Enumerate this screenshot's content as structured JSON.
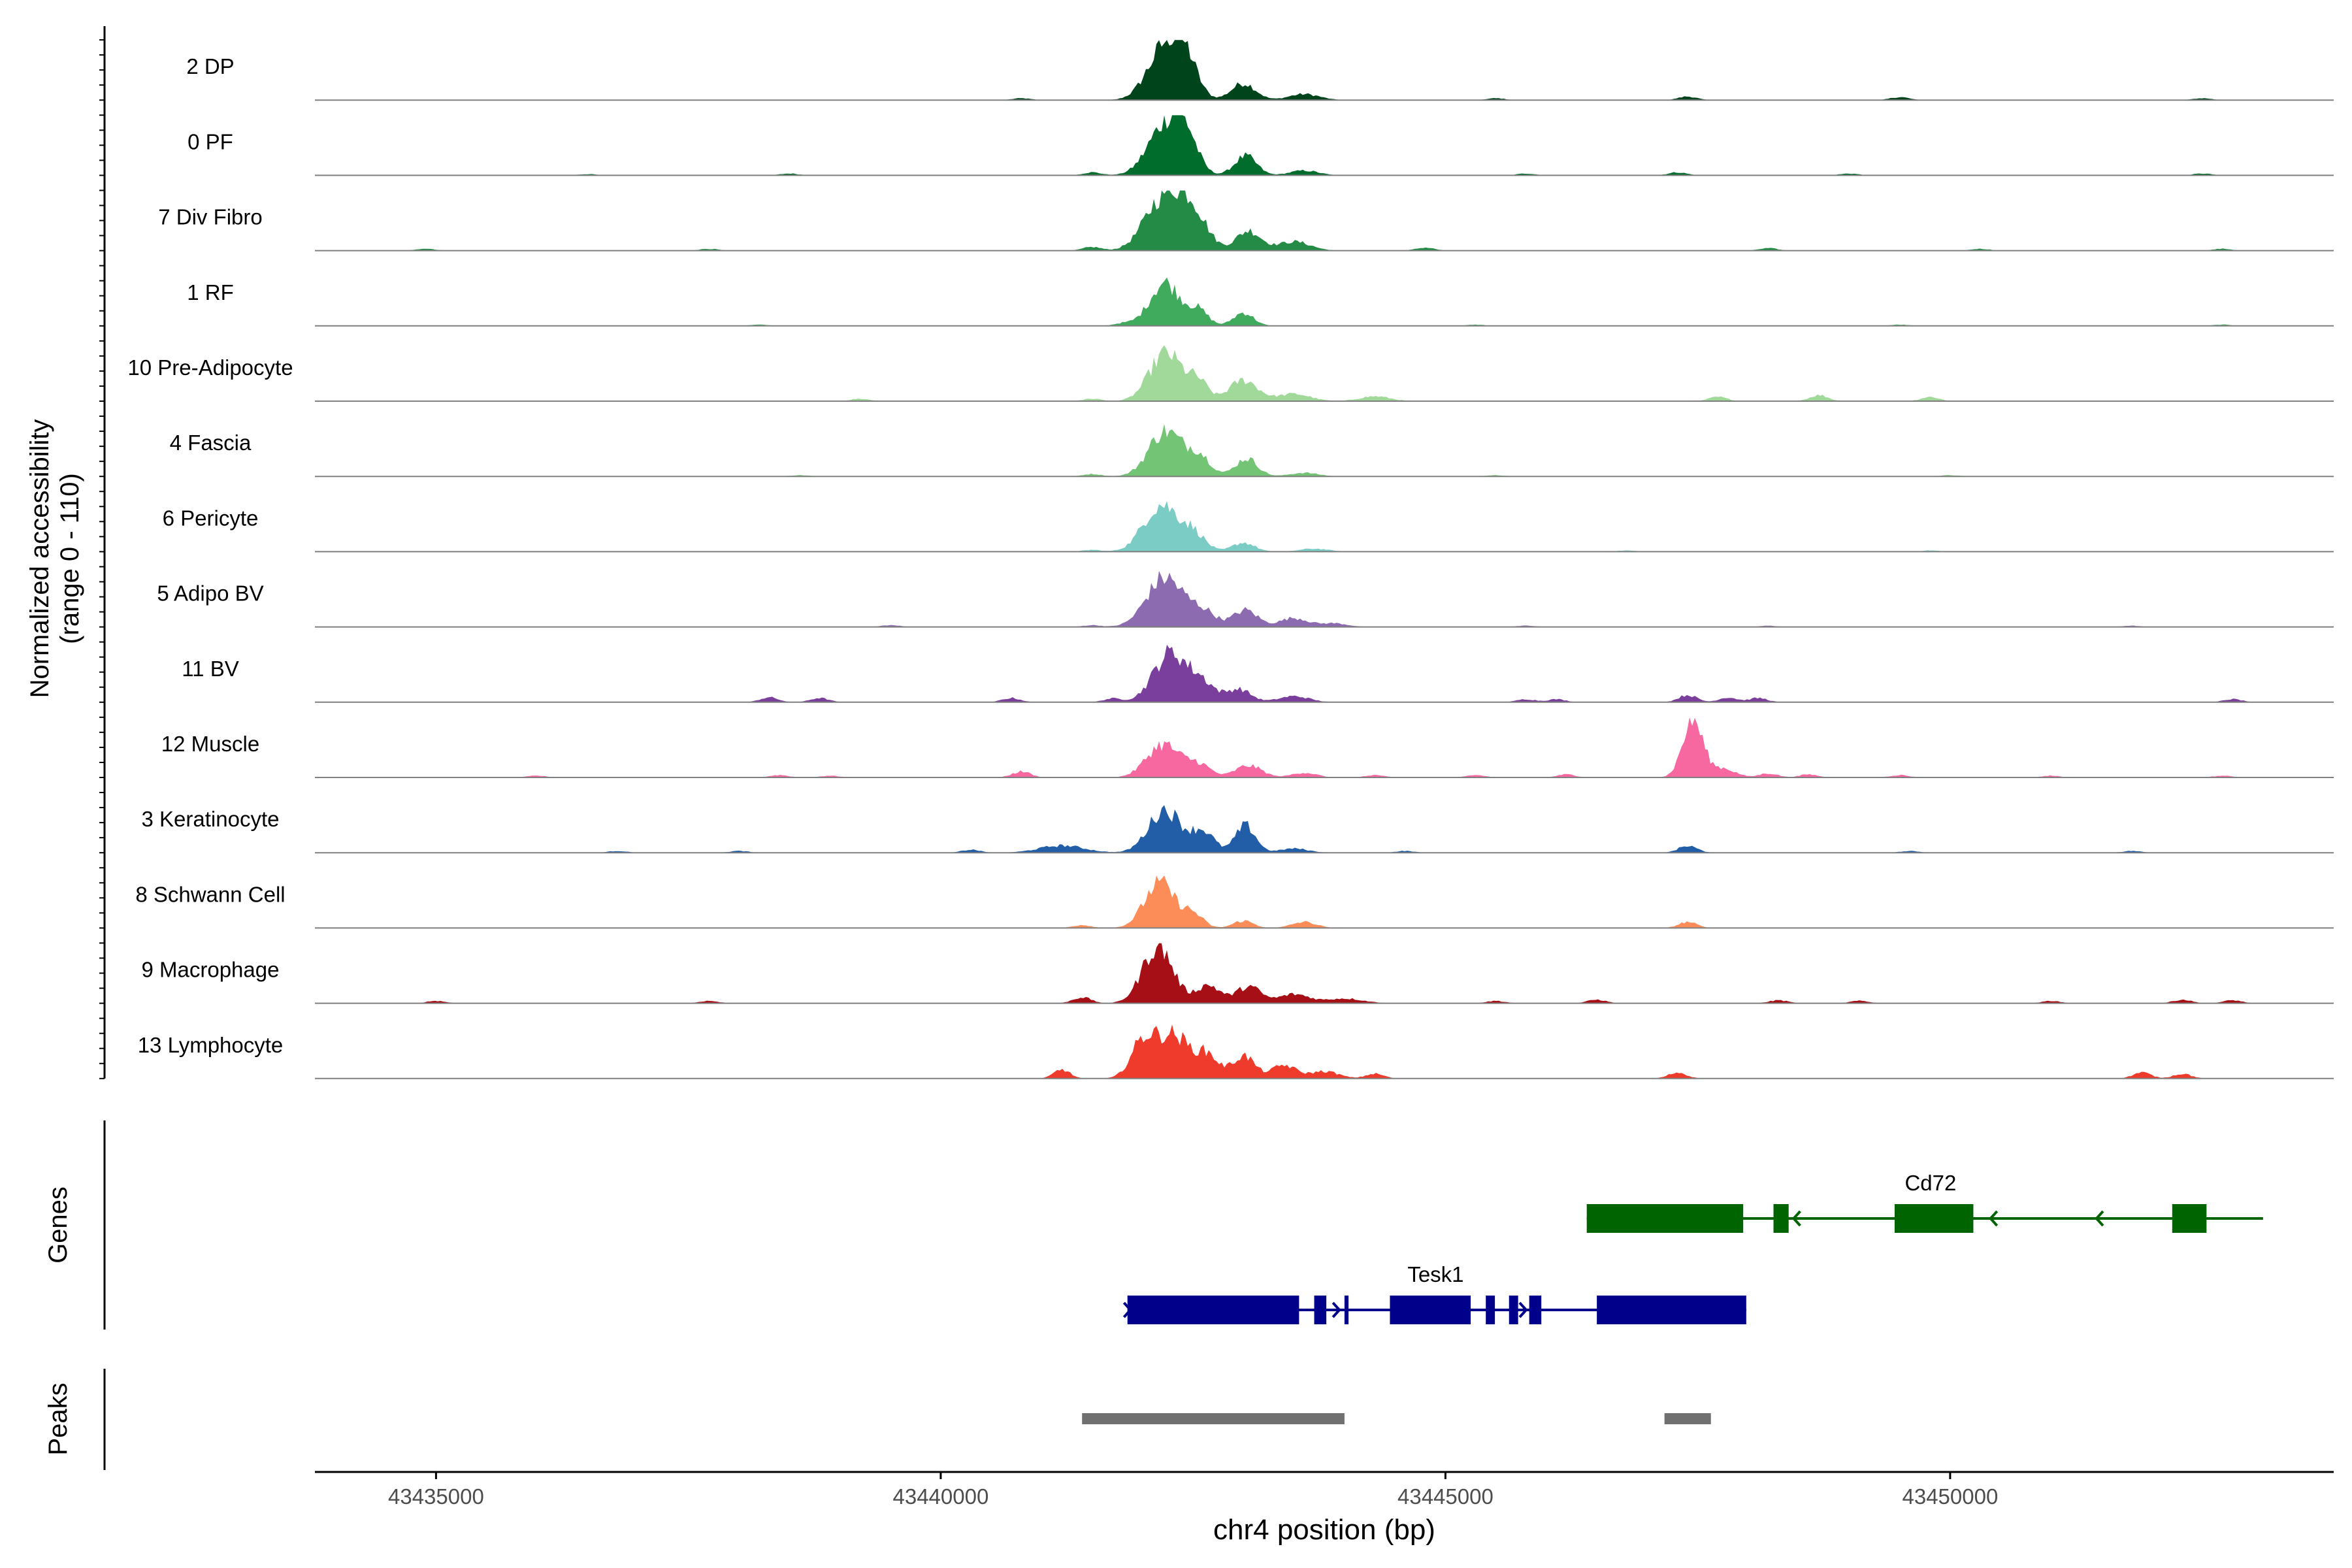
{
  "chart_data": {
    "type": "coverage-track",
    "xlabel": "chr4 position (bp)",
    "x_range": [
      43433800,
      43453800
    ],
    "x_ticks": [
      43435000,
      43440000,
      43445000,
      43450000
    ],
    "x_tick_labels": [
      "43435000",
      "43440000",
      "43445000",
      "43450000"
    ],
    "coverage_ylabel_line1": "Normalized accessibility",
    "coverage_ylabel_line2": "(range 0 - 110)",
    "y_range": [
      0,
      110
    ],
    "genes_label": "Genes",
    "peaks_label": "Peaks",
    "tracks": [
      {
        "name": "2 DP",
        "color": "#00441b",
        "peaks": [
          [
            43442220,
            0.85,
            170
          ],
          [
            43442420,
            0.55,
            120
          ],
          [
            43443000,
            0.28,
            120
          ],
          [
            43443600,
            0.1,
            150
          ]
        ],
        "noise": [
          [
            43440800,
            0.03
          ],
          [
            43445500,
            0.03
          ],
          [
            43447400,
            0.06
          ],
          [
            43449500,
            0.05
          ],
          [
            43452500,
            0.03
          ]
        ]
      },
      {
        "name": "0 PF",
        "color": "#006d2c",
        "peaks": [
          [
            43442220,
            0.8,
            170
          ],
          [
            43442420,
            0.55,
            120
          ],
          [
            43443020,
            0.32,
            110
          ],
          [
            43443600,
            0.08,
            140
          ]
        ],
        "noise": [
          [
            43436500,
            0.02
          ],
          [
            43438500,
            0.03
          ],
          [
            43441500,
            0.05
          ],
          [
            43445800,
            0.03
          ],
          [
            43447300,
            0.05
          ],
          [
            43449000,
            0.03
          ],
          [
            43452500,
            0.03
          ]
        ]
      },
      {
        "name": "7 Div Fibro",
        "color": "#238b45",
        "peaks": [
          [
            43442200,
            0.85,
            180
          ],
          [
            43442480,
            0.65,
            150
          ],
          [
            43443050,
            0.33,
            120
          ],
          [
            43443500,
            0.15,
            160
          ]
        ],
        "noise": [
          [
            43434900,
            0.03
          ],
          [
            43437700,
            0.03
          ],
          [
            43441500,
            0.06
          ],
          [
            43444800,
            0.05
          ],
          [
            43448200,
            0.04
          ],
          [
            43450300,
            0.03
          ],
          [
            43452700,
            0.03
          ]
        ]
      },
      {
        "name": "1 RF",
        "color": "#41ab5d",
        "peaks": [
          [
            43442220,
            0.72,
            150
          ],
          [
            43442550,
            0.25,
            100
          ],
          [
            43443000,
            0.22,
            100
          ]
        ],
        "noise": [
          [
            43438200,
            0.02
          ],
          [
            43441800,
            0.04
          ],
          [
            43445300,
            0.02
          ],
          [
            43449500,
            0.02
          ],
          [
            43452700,
            0.02
          ]
        ]
      },
      {
        "name": "10 Pre-Adipocyte",
        "color": "#a1d99b",
        "peaks": [
          [
            43442230,
            0.8,
            160
          ],
          [
            43442550,
            0.3,
            100
          ],
          [
            43443000,
            0.35,
            140
          ],
          [
            43443500,
            0.12,
            160
          ],
          [
            43444300,
            0.08,
            150
          ]
        ],
        "noise": [
          [
            43439200,
            0.04
          ],
          [
            43441500,
            0.04
          ],
          [
            43447700,
            0.07
          ],
          [
            43448700,
            0.1
          ],
          [
            43449800,
            0.07
          ]
        ]
      },
      {
        "name": "4 Fascia",
        "color": "#74c476",
        "peaks": [
          [
            43442220,
            0.75,
            160
          ],
          [
            43442550,
            0.35,
            120
          ],
          [
            43443030,
            0.3,
            110
          ],
          [
            43443600,
            0.06,
            140
          ]
        ],
        "noise": [
          [
            43438600,
            0.02
          ],
          [
            43441500,
            0.04
          ],
          [
            43445500,
            0.02
          ],
          [
            43450000,
            0.02
          ]
        ]
      },
      {
        "name": "6 Pericyte",
        "color": "#7bccc4",
        "peaks": [
          [
            43442180,
            0.78,
            170
          ],
          [
            43442500,
            0.28,
            120
          ],
          [
            43443000,
            0.15,
            110
          ],
          [
            43443700,
            0.05,
            140
          ]
        ],
        "noise": [
          [
            43441500,
            0.03
          ],
          [
            43446800,
            0.02
          ],
          [
            43449800,
            0.02
          ]
        ]
      },
      {
        "name": "5 Adipo BV",
        "color": "#8c6bb1",
        "peaks": [
          [
            43442220,
            0.82,
            180
          ],
          [
            43442600,
            0.25,
            130
          ],
          [
            43443020,
            0.28,
            120
          ],
          [
            43443500,
            0.15,
            140
          ],
          [
            43443900,
            0.06,
            130
          ]
        ],
        "noise": [
          [
            43439500,
            0.03
          ],
          [
            43441500,
            0.03
          ],
          [
            43445800,
            0.02
          ],
          [
            43448200,
            0.02
          ],
          [
            43451800,
            0.02
          ]
        ]
      },
      {
        "name": "11 BV",
        "color": "#7a3e9d",
        "peaks": [
          [
            43442280,
            0.82,
            170
          ],
          [
            43442600,
            0.28,
            120
          ],
          [
            43442950,
            0.22,
            120
          ],
          [
            43443500,
            0.1,
            150
          ]
        ],
        "noise": [
          [
            43438300,
            0.08
          ],
          [
            43438800,
            0.07
          ],
          [
            43440700,
            0.07
          ],
          [
            43441700,
            0.06
          ],
          [
            43445800,
            0.05
          ],
          [
            43446100,
            0.05
          ],
          [
            43447400,
            0.12
          ],
          [
            43447800,
            0.08
          ],
          [
            43448100,
            0.07
          ],
          [
            43452800,
            0.05
          ]
        ]
      },
      {
        "name": "12 Muscle",
        "color": "#f768a1",
        "peaks": [
          [
            43442200,
            0.55,
            160
          ],
          [
            43442550,
            0.22,
            120
          ],
          [
            43443050,
            0.2,
            130
          ],
          [
            43443600,
            0.08,
            120
          ],
          [
            43447450,
            0.95,
            100
          ],
          [
            43447750,
            0.15,
            120
          ]
        ],
        "noise": [
          [
            43436000,
            0.03
          ],
          [
            43438400,
            0.04
          ],
          [
            43438900,
            0.03
          ],
          [
            43440800,
            0.1
          ],
          [
            43444300,
            0.04
          ],
          [
            43445300,
            0.04
          ],
          [
            43446200,
            0.05
          ],
          [
            43448200,
            0.07
          ],
          [
            43448600,
            0.05
          ],
          [
            43449500,
            0.04
          ],
          [
            43451000,
            0.03
          ],
          [
            43452700,
            0.03
          ]
        ]
      },
      {
        "name": "3 Keratinocyte",
        "color": "#225ea8",
        "peaks": [
          [
            43442220,
            0.72,
            160
          ],
          [
            43442600,
            0.35,
            110
          ],
          [
            43443020,
            0.45,
            100
          ],
          [
            43441200,
            0.12,
            220
          ],
          [
            43443500,
            0.07,
            140
          ]
        ],
        "noise": [
          [
            43436800,
            0.03
          ],
          [
            43438000,
            0.03
          ],
          [
            43440300,
            0.05
          ],
          [
            43444600,
            0.03
          ],
          [
            43447400,
            0.12
          ],
          [
            43449600,
            0.03
          ],
          [
            43451800,
            0.03
          ]
        ]
      },
      {
        "name": "8 Schwann Cell",
        "color": "#fc8d59",
        "peaks": [
          [
            43442170,
            0.75,
            150
          ],
          [
            43442500,
            0.22,
            100
          ],
          [
            43443000,
            0.12,
            100
          ],
          [
            43443600,
            0.1,
            120
          ]
        ],
        "noise": [
          [
            43441400,
            0.05
          ],
          [
            43447400,
            0.1
          ]
        ]
      },
      {
        "name": "9 Macrophage",
        "color": "#a50f15",
        "peaks": [
          [
            43442150,
            0.95,
            150
          ],
          [
            43442650,
            0.3,
            120
          ],
          [
            43443050,
            0.28,
            120
          ],
          [
            43443500,
            0.15,
            150
          ],
          [
            43444000,
            0.08,
            180
          ]
        ],
        "noise": [
          [
            43435000,
            0.04
          ],
          [
            43437700,
            0.04
          ],
          [
            43441400,
            0.1
          ],
          [
            43445500,
            0.04
          ],
          [
            43446500,
            0.06
          ],
          [
            43448300,
            0.05
          ],
          [
            43449100,
            0.04
          ],
          [
            43451000,
            0.04
          ],
          [
            43452300,
            0.06
          ],
          [
            43452800,
            0.05
          ]
        ]
      },
      {
        "name": "13 Lymphocyte",
        "color": "#ef3b2c",
        "peaks": [
          [
            43442300,
            0.72,
            170
          ],
          [
            43442000,
            0.55,
            120
          ],
          [
            43442650,
            0.35,
            110
          ],
          [
            43443000,
            0.38,
            110
          ],
          [
            43443400,
            0.22,
            120
          ],
          [
            43443800,
            0.12,
            140
          ],
          [
            43441200,
            0.15,
            80
          ]
        ],
        "noise": [
          [
            43444300,
            0.08
          ],
          [
            43447300,
            0.1
          ],
          [
            43451900,
            0.1
          ],
          [
            43452300,
            0.08
          ]
        ]
      }
    ],
    "genes": [
      {
        "name": "Cd72",
        "color": "#006400",
        "strand": "-",
        "start": 43446400,
        "end": 43453100,
        "exons": [
          [
            43446400,
            43447950
          ],
          [
            43448250,
            43448400
          ],
          [
            43449450,
            43450230
          ],
          [
            43452200,
            43452540
          ]
        ],
        "arrows": [
          43448450,
          43450400,
          43451450
        ]
      },
      {
        "name": "Tesk1",
        "color": "#00008b",
        "strand": "+",
        "start": 43441850,
        "end": 43447980,
        "exons": [
          [
            43441850,
            43443550
          ],
          [
            43443700,
            43443820
          ],
          [
            43444000,
            43444040
          ],
          [
            43444450,
            43445250
          ],
          [
            43445400,
            43445490
          ],
          [
            43445630,
            43445720
          ],
          [
            43445830,
            43445950
          ],
          [
            43446500,
            43447980
          ]
        ],
        "arrows": [
          43441880,
          43443950,
          43445800
        ]
      }
    ],
    "peak_regions": [
      [
        43441400,
        43444000
      ],
      [
        43447170,
        43447630
      ]
    ]
  }
}
